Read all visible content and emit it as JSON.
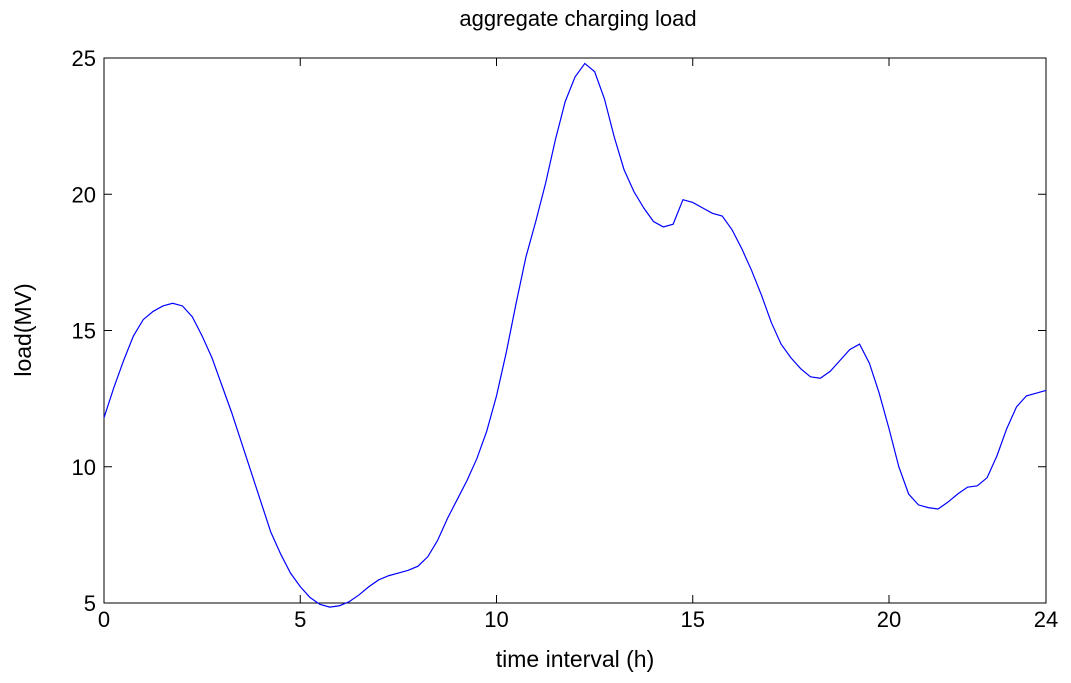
{
  "chart_data": {
    "type": "line",
    "title": "aggregate charging load",
    "xlabel": "time interval (h)",
    "ylabel": "load(MV)",
    "xlim": [
      0,
      24
    ],
    "ylim": [
      5,
      25
    ],
    "xticks": [
      0,
      5,
      10,
      15,
      20,
      24
    ],
    "yticks": [
      5,
      10,
      15,
      20,
      25
    ],
    "xtick_labels": [
      "0",
      "5",
      "10",
      "15",
      "20",
      "24"
    ],
    "ytick_labels": [
      "5",
      "10",
      "15",
      "20",
      "25"
    ],
    "grid": false,
    "legend": "none",
    "series": [
      {
        "color": "#0000ff",
        "x": [
          0,
          0.25,
          0.5,
          0.75,
          1.0,
          1.25,
          1.5,
          1.75,
          2.0,
          2.25,
          2.5,
          2.75,
          3.0,
          3.25,
          3.5,
          3.75,
          4.0,
          4.25,
          4.5,
          4.75,
          5.0,
          5.25,
          5.5,
          5.75,
          6.0,
          6.25,
          6.5,
          6.75,
          7.0,
          7.25,
          7.5,
          7.75,
          8.0,
          8.25,
          8.5,
          8.75,
          9.0,
          9.25,
          9.5,
          9.75,
          10.0,
          10.25,
          10.5,
          10.75,
          11.0,
          11.25,
          11.5,
          11.75,
          12.0,
          12.25,
          12.5,
          12.75,
          13.0,
          13.25,
          13.5,
          13.75,
          14.0,
          14.25,
          14.5,
          14.75,
          15.0,
          15.25,
          15.5,
          15.75,
          16.0,
          16.25,
          16.5,
          16.75,
          17.0,
          17.25,
          17.5,
          17.75,
          18.0,
          18.25,
          18.5,
          18.75,
          19.0,
          19.25,
          19.5,
          19.75,
          20.0,
          20.25,
          20.5,
          20.75,
          21.0,
          21.25,
          21.5,
          21.75,
          22.0,
          22.25,
          22.5,
          22.75,
          23.0,
          23.25,
          23.5,
          23.75,
          24.0
        ],
        "values": [
          11.8,
          12.9,
          13.9,
          14.8,
          15.4,
          15.7,
          15.9,
          16.0,
          15.9,
          15.5,
          14.8,
          14.0,
          13.0,
          12.0,
          10.9,
          9.8,
          8.7,
          7.6,
          6.8,
          6.1,
          5.6,
          5.2,
          4.95,
          4.85,
          4.9,
          5.05,
          5.3,
          5.6,
          5.85,
          6.0,
          6.1,
          6.2,
          6.35,
          6.7,
          7.3,
          8.1,
          8.8,
          9.5,
          10.3,
          11.3,
          12.6,
          14.2,
          16.0,
          17.7,
          19.0,
          20.4,
          22.0,
          23.4,
          24.3,
          24.8,
          24.5,
          23.5,
          22.1,
          20.9,
          20.1,
          19.5,
          19.0,
          18.8,
          18.9,
          19.8,
          19.7,
          19.5,
          19.3,
          19.2,
          18.7,
          18.0,
          17.2,
          16.3,
          15.3,
          14.5,
          14.0,
          13.6,
          13.3,
          13.25,
          13.5,
          13.9,
          14.3,
          14.5,
          13.8,
          12.7,
          11.4,
          10.0,
          9.0,
          8.6,
          8.5,
          8.45,
          8.7,
          9.0,
          9.25,
          9.3,
          9.6,
          10.4,
          11.4,
          12.2,
          12.6,
          12.7,
          12.8
        ]
      }
    ]
  }
}
